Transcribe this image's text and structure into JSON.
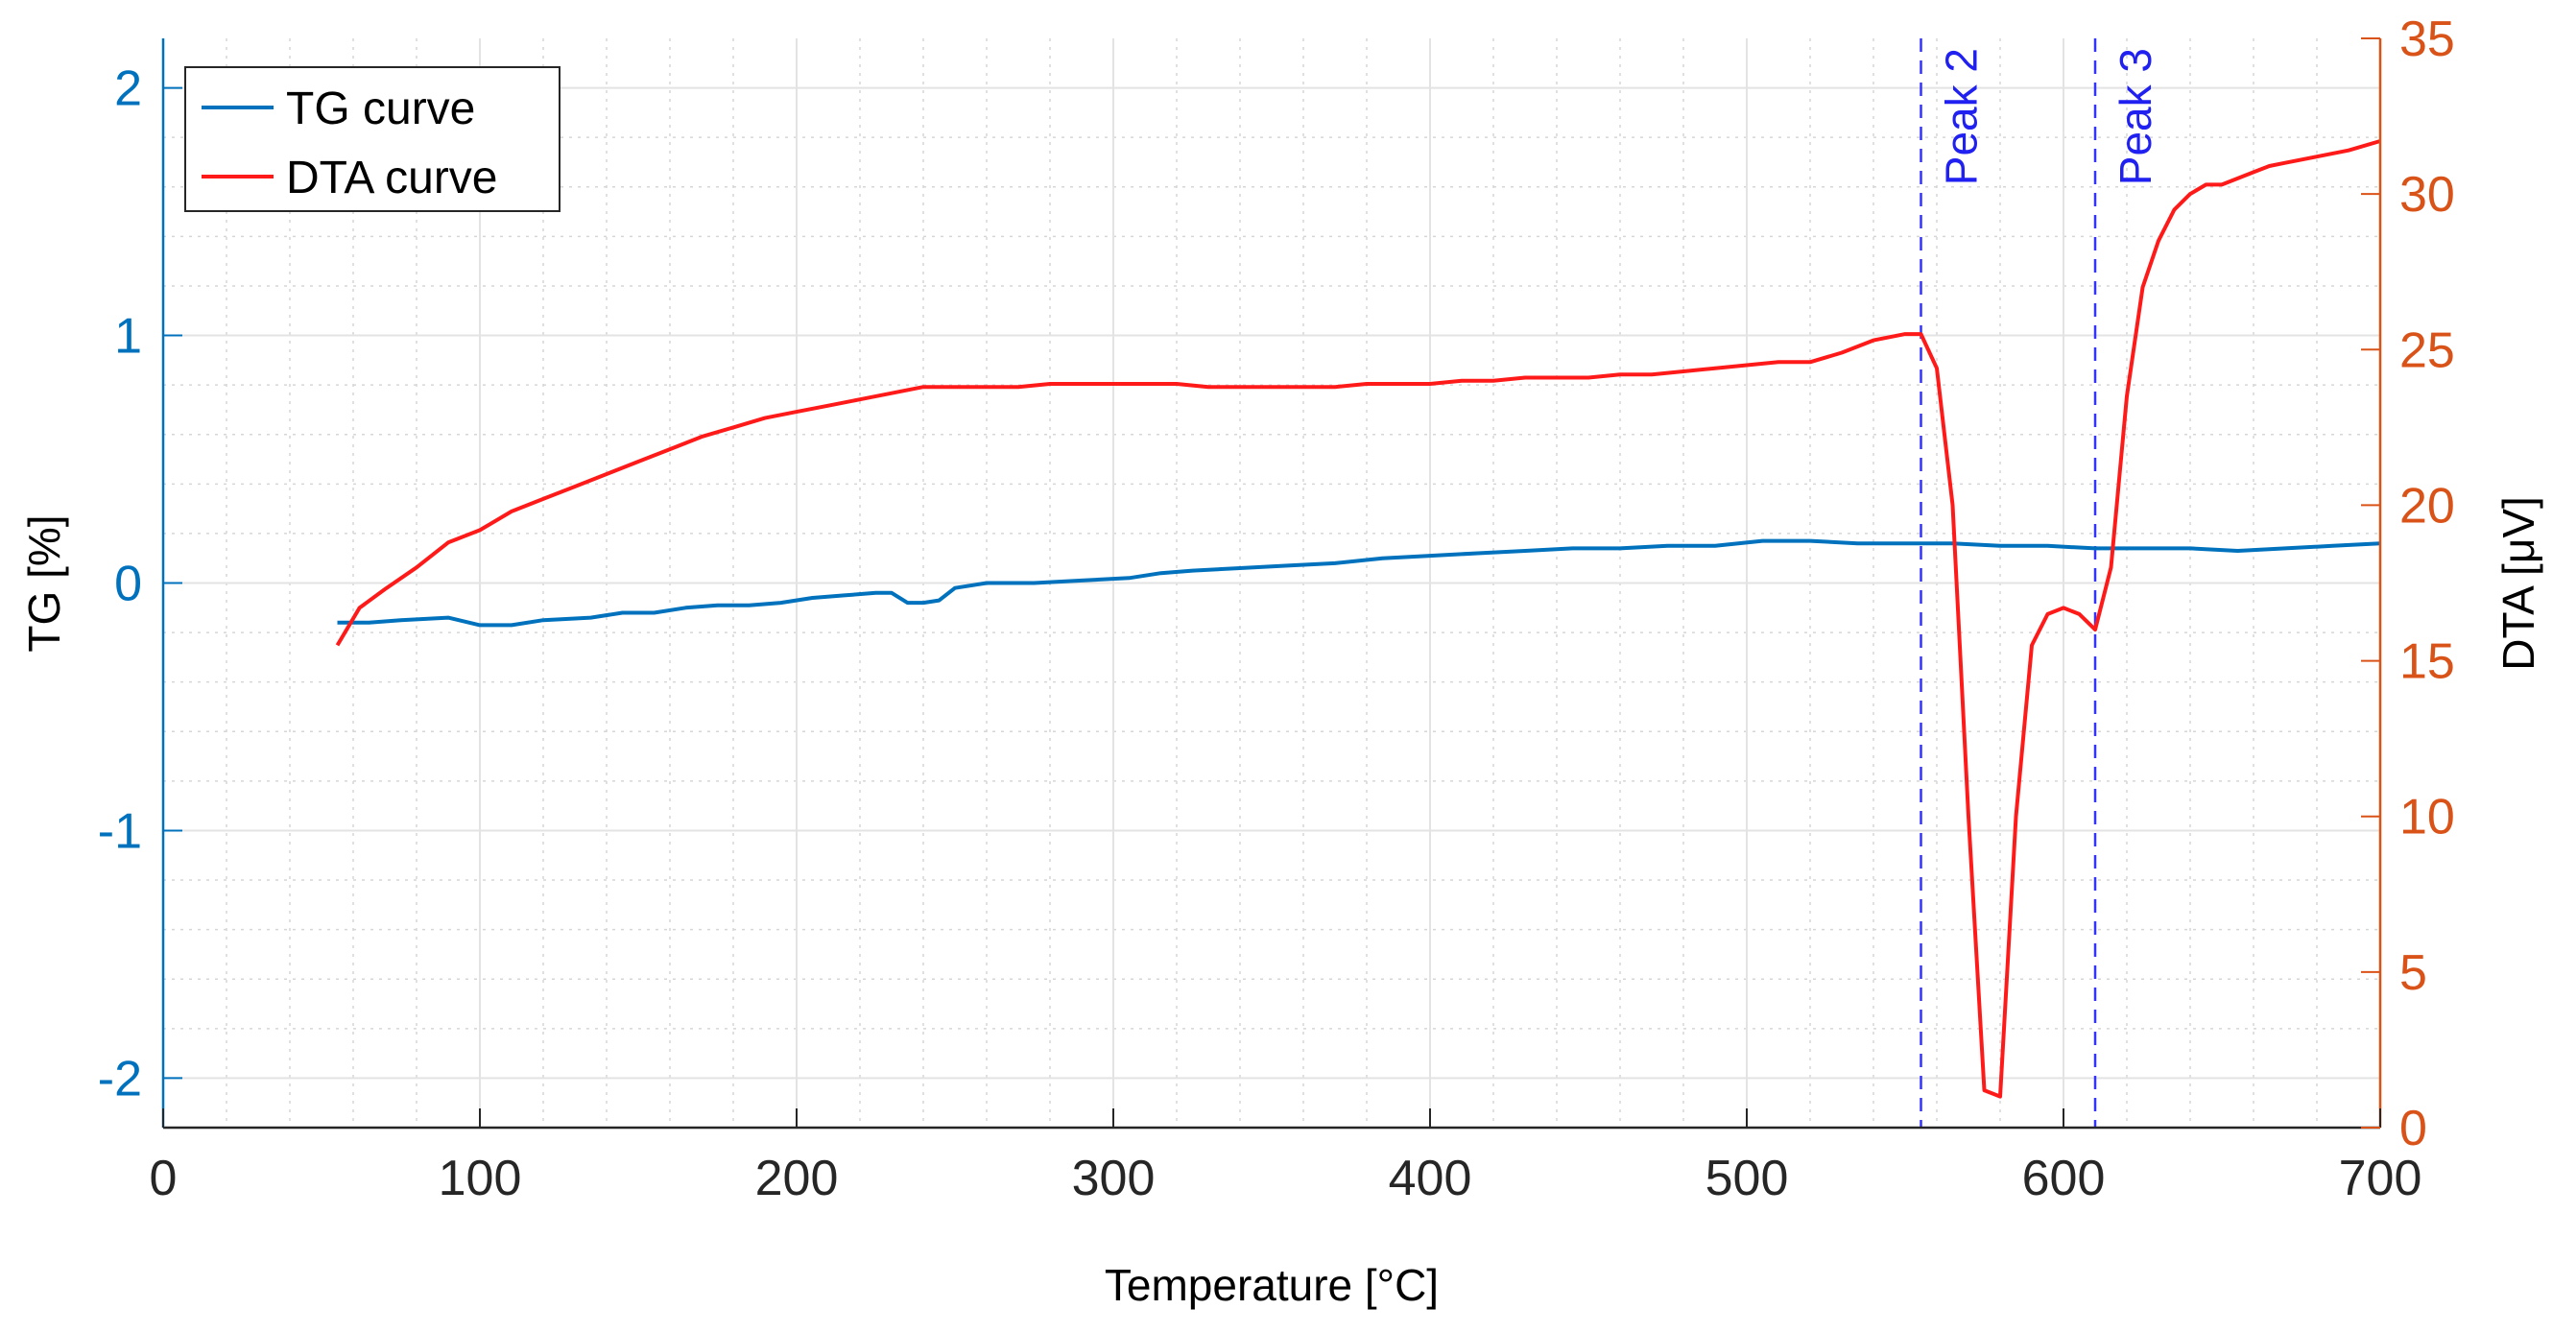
{
  "chart_data": {
    "type": "line",
    "xlabel": "Temperature [°C]",
    "ylabel_left": "TG [%]",
    "ylabel_right": "DTA [μV]",
    "xlim": [
      0,
      700
    ],
    "ylim_left": [
      -2.2,
      2.2
    ],
    "ylim_right": [
      0,
      35
    ],
    "x_ticks": [
      0,
      100,
      200,
      300,
      400,
      500,
      600,
      700
    ],
    "y_left_ticks": [
      2,
      1,
      0,
      -1,
      -2
    ],
    "y_right_ticks": [
      35,
      30,
      25,
      20,
      15,
      10,
      5,
      0
    ],
    "grid": "on (major and minor)",
    "legend_position": "top-left",
    "colors": {
      "tg": "#0072BD",
      "dta": "#FF1A1A",
      "peak_lines": "#3333FF",
      "left_axis": "#0072BD",
      "right_axis": "#D95319"
    },
    "series": [
      {
        "name": "TG curve",
        "axis": "left",
        "x": [
          55,
          65,
          75,
          90,
          100,
          110,
          120,
          135,
          145,
          155,
          165,
          175,
          185,
          195,
          205,
          215,
          225,
          230,
          235,
          240,
          245,
          250,
          260,
          275,
          290,
          305,
          315,
          325,
          340,
          355,
          370,
          385,
          400,
          415,
          430,
          445,
          460,
          475,
          490,
          505,
          520,
          535,
          550,
          565,
          580,
          595,
          610,
          625,
          640,
          655,
          670,
          685,
          700
        ],
        "y": [
          -0.16,
          -0.16,
          -0.15,
          -0.14,
          -0.17,
          -0.17,
          -0.15,
          -0.14,
          -0.12,
          -0.12,
          -0.1,
          -0.09,
          -0.09,
          -0.08,
          -0.06,
          -0.05,
          -0.04,
          -0.04,
          -0.08,
          -0.08,
          -0.07,
          -0.02,
          0.0,
          0.0,
          0.01,
          0.02,
          0.04,
          0.05,
          0.06,
          0.07,
          0.08,
          0.1,
          0.11,
          0.12,
          0.13,
          0.14,
          0.14,
          0.15,
          0.15,
          0.17,
          0.17,
          0.16,
          0.16,
          0.16,
          0.15,
          0.15,
          0.14,
          0.14,
          0.14,
          0.13,
          0.14,
          0.15,
          0.16
        ]
      },
      {
        "name": "DTA curve",
        "axis": "right",
        "x": [
          55,
          62,
          70,
          80,
          90,
          100,
          110,
          120,
          130,
          140,
          150,
          160,
          170,
          180,
          190,
          200,
          210,
          220,
          230,
          240,
          250,
          260,
          270,
          280,
          290,
          300,
          310,
          320,
          330,
          340,
          350,
          360,
          370,
          380,
          390,
          400,
          410,
          420,
          430,
          440,
          450,
          460,
          470,
          480,
          490,
          500,
          510,
          520,
          530,
          540,
          550,
          555,
          560,
          565,
          570,
          575,
          580,
          585,
          590,
          595,
          600,
          605,
          610,
          615,
          620,
          625,
          630,
          635,
          640,
          645,
          650,
          655,
          660,
          665,
          670,
          680,
          690,
          700
        ],
        "y": [
          15.5,
          16.7,
          17.3,
          18.0,
          18.8,
          19.2,
          19.8,
          20.2,
          20.6,
          21.0,
          21.4,
          21.8,
          22.2,
          22.5,
          22.8,
          23.0,
          23.2,
          23.4,
          23.6,
          23.8,
          23.8,
          23.8,
          23.8,
          23.9,
          23.9,
          23.9,
          23.9,
          23.9,
          23.8,
          23.8,
          23.8,
          23.8,
          23.8,
          23.9,
          23.9,
          23.9,
          24.0,
          24.0,
          24.1,
          24.1,
          24.1,
          24.2,
          24.2,
          24.3,
          24.4,
          24.5,
          24.6,
          24.6,
          24.9,
          25.3,
          25.5,
          25.5,
          24.4,
          20.0,
          10.0,
          1.2,
          1.0,
          10.0,
          15.5,
          16.5,
          16.7,
          16.5,
          16.0,
          18.0,
          23.5,
          27.0,
          28.5,
          29.5,
          30.0,
          30.3,
          30.3,
          30.5,
          30.7,
          30.9,
          31.0,
          31.2,
          31.4,
          31.7
        ]
      }
    ],
    "annotations": [
      {
        "label": "Peak 2",
        "x": 555
      },
      {
        "label": "Peak 3",
        "x": 610
      }
    ]
  }
}
